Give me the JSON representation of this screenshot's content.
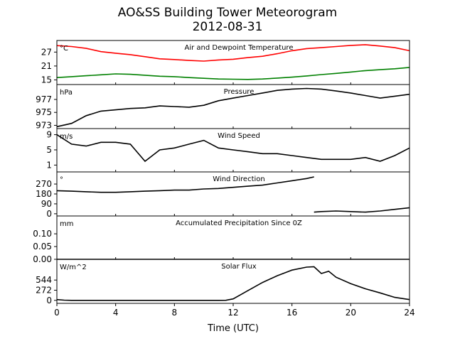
{
  "title": "AO&SS Building Tower Meteorogram",
  "subtitle": "2012-08-31",
  "xlabel": "Time (UTC)",
  "colors": {
    "temperature": "#ff0000",
    "dewpoint": "#008000",
    "black": "#000000"
  },
  "chart_data": [
    {
      "type": "line",
      "title": "Air and Dewpoint Temperature",
      "unit": "°C",
      "ylim": [
        13,
        32
      ],
      "yticks": [
        15,
        21,
        27
      ],
      "series": [
        {
          "x": [
            0,
            1,
            2,
            3,
            4,
            5,
            6,
            7,
            8,
            9,
            10,
            11,
            12,
            13,
            14,
            15,
            16,
            17,
            18,
            19,
            20,
            21,
            22,
            23,
            24
          ],
          "y": [
            29.8,
            29.4,
            28.6,
            27.2,
            26.5,
            25.9,
            25.0,
            24.1,
            23.8,
            23.4,
            23.1,
            23.6,
            23.9,
            24.6,
            25.2,
            26.3,
            27.6,
            28.5,
            28.9,
            29.4,
            29.9,
            30.2,
            29.6,
            28.9,
            27.6
          ],
          "color_key": "temperature"
        },
        {
          "x": [
            0,
            1,
            2,
            3,
            4,
            5,
            6,
            7,
            8,
            9,
            10,
            11,
            12,
            13,
            14,
            15,
            16,
            17,
            18,
            19,
            20,
            21,
            22,
            23,
            24
          ],
          "y": [
            16.0,
            16.4,
            16.8,
            17.2,
            17.6,
            17.4,
            17.0,
            16.6,
            16.4,
            16.0,
            15.7,
            15.4,
            15.3,
            15.2,
            15.4,
            15.8,
            16.2,
            16.7,
            17.3,
            17.8,
            18.4,
            19.0,
            19.4,
            19.8,
            20.4
          ],
          "color_key": "dewpoint"
        }
      ]
    },
    {
      "type": "line",
      "title": "Pressure",
      "unit": "hPa",
      "ylim": [
        972.5,
        979.3
      ],
      "yticks": [
        973,
        975,
        977
      ],
      "series": [
        {
          "x": [
            0,
            1,
            2,
            3,
            4,
            5,
            6,
            7,
            8,
            9,
            10,
            11,
            12,
            13,
            14,
            15,
            16,
            17,
            18,
            19,
            20,
            21,
            22,
            23,
            24
          ],
          "y": [
            972.8,
            973.3,
            974.5,
            975.2,
            975.4,
            975.6,
            975.7,
            976.0,
            975.9,
            975.8,
            976.1,
            976.8,
            977.2,
            977.6,
            978.0,
            978.4,
            978.6,
            978.7,
            978.6,
            978.3,
            978.0,
            977.6,
            977.2,
            977.5,
            977.8
          ],
          "color_key": "black"
        }
      ]
    },
    {
      "type": "line",
      "title": "Wind Speed",
      "unit": "m/s",
      "ylim": [
        -0.8,
        10.6
      ],
      "yticks": [
        1,
        5,
        9
      ],
      "series": [
        {
          "x": [
            0,
            1,
            2,
            3,
            4,
            5,
            6,
            7,
            8,
            9,
            10,
            11,
            12,
            13,
            14,
            15,
            16,
            17,
            18,
            19,
            20,
            21,
            22,
            23,
            24
          ],
          "y": [
            9.0,
            6.5,
            6.0,
            7.0,
            7.0,
            6.5,
            2.0,
            5.0,
            5.5,
            6.5,
            7.5,
            5.5,
            5.0,
            4.5,
            4.0,
            4.0,
            3.5,
            3.0,
            2.5,
            2.5,
            2.5,
            3.0,
            2.0,
            3.5,
            5.5
          ],
          "color_key": "black"
        }
      ]
    },
    {
      "type": "line",
      "title": "Wind Direction",
      "unit": "°",
      "ylim": [
        -20,
        380
      ],
      "yticks": [
        0,
        90,
        180,
        270
      ],
      "series": [
        {
          "x": [
            0,
            1,
            2,
            3,
            4,
            5,
            6,
            7,
            8,
            9,
            10,
            11,
            12,
            13,
            14,
            15,
            16,
            17,
            17.5
          ],
          "y": [
            210,
            205,
            200,
            195,
            195,
            200,
            205,
            210,
            215,
            215,
            225,
            230,
            240,
            250,
            260,
            280,
            300,
            320,
            335
          ],
          "color_key": "black"
        },
        {
          "x": [
            17.5,
            18,
            19,
            20,
            21,
            22,
            23,
            24
          ],
          "y": [
            15,
            20,
            25,
            20,
            15,
            25,
            40,
            55
          ],
          "color_key": "black"
        }
      ]
    },
    {
      "type": "line",
      "title": "Accumulated Precipitation Since 0Z",
      "unit": "mm",
      "ylim": [
        0,
        0.17
      ],
      "yticks": [
        0.0,
        0.05,
        0.1
      ],
      "series": [
        {
          "x": [
            0,
            24
          ],
          "y": [
            0.0,
            0.0
          ],
          "color_key": "black"
        }
      ]
    },
    {
      "type": "line",
      "title": "Solar Flux",
      "unit": "W/m^2",
      "ylim": [
        -80,
        1100
      ],
      "yticks": [
        0,
        272,
        544
      ],
      "series": [
        {
          "x": [
            0,
            0.5,
            1,
            2,
            3,
            4,
            5,
            6,
            7,
            8,
            9,
            10,
            11,
            11.5,
            12,
            12.5,
            13,
            14,
            15,
            16,
            17,
            17.5,
            18,
            18.5,
            19,
            20,
            21,
            22,
            23,
            24
          ],
          "y": [
            20,
            5,
            0,
            0,
            0,
            0,
            0,
            0,
            0,
            0,
            0,
            0,
            0,
            2,
            40,
            150,
            260,
            480,
            660,
            810,
            890,
            900,
            720,
            780,
            620,
            450,
            310,
            200,
            80,
            20
          ],
          "color_key": "black"
        }
      ]
    }
  ],
  "xaxis": {
    "ticks": [
      "0",
      "4",
      "8",
      "12",
      "16",
      "20",
      "24"
    ],
    "xlim": [
      0,
      24
    ]
  }
}
